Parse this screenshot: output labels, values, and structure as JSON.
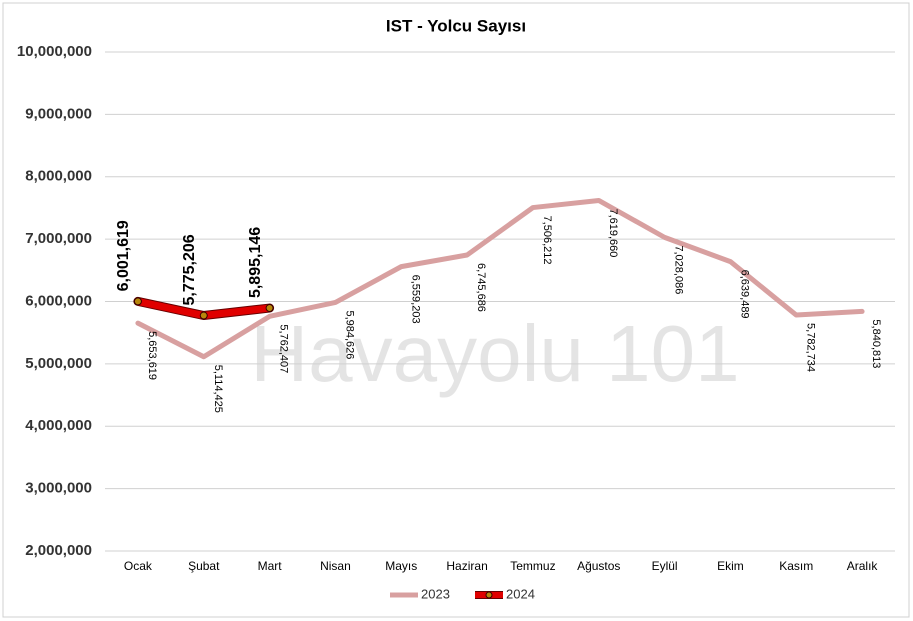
{
  "chart_data": {
    "type": "line",
    "title": "IST - Yolcu Sayısı",
    "watermark": "Havayolu 101",
    "categories": [
      "Ocak",
      "Şubat",
      "Mart",
      "Nisan",
      "Mayıs",
      "Haziran",
      "Temmuz",
      "Ağustos",
      "Eylül",
      "Ekim",
      "Kasım",
      "Aralık"
    ],
    "series": [
      {
        "name": "2023",
        "color": "#d8a0a0",
        "values": [
          5653619,
          5114425,
          5762407,
          5984626,
          6559203,
          6745686,
          7506212,
          7619660,
          7028086,
          6639489,
          5782734,
          5840813
        ],
        "value_labels": [
          "5,653,619",
          "5,114,425",
          "5,762,407",
          "5,984,626",
          "6,559,203",
          "6,745,686",
          "7,506,212",
          "7,619,660",
          "7,028,086",
          "6,639,489",
          "5,782,734",
          "5,840,813"
        ]
      },
      {
        "name": "2024",
        "color": "#e00000",
        "values": [
          6001619,
          5775206,
          5895146,
          null,
          null,
          null,
          null,
          null,
          null,
          null,
          null,
          null
        ],
        "value_labels": [
          "6,001,619",
          "5,775,206",
          "5,895,146",
          null,
          null,
          null,
          null,
          null,
          null,
          null,
          null,
          null
        ]
      }
    ],
    "ylim": [
      2000000,
      10000000
    ],
    "yticks": [
      {
        "value": 2000000,
        "label": "2,000,000"
      },
      {
        "value": 3000000,
        "label": "3,000,000"
      },
      {
        "value": 4000000,
        "label": "4,000,000"
      },
      {
        "value": 5000000,
        "label": "5,000,000"
      },
      {
        "value": 6000000,
        "label": "6,000,000"
      },
      {
        "value": 7000000,
        "label": "7,000,000"
      },
      {
        "value": 8000000,
        "label": "8,000,000"
      },
      {
        "value": 9000000,
        "label": "9,000,000"
      },
      {
        "value": 10000000,
        "label": "10,000,000"
      }
    ],
    "grid": true,
    "legend": "bottom"
  }
}
